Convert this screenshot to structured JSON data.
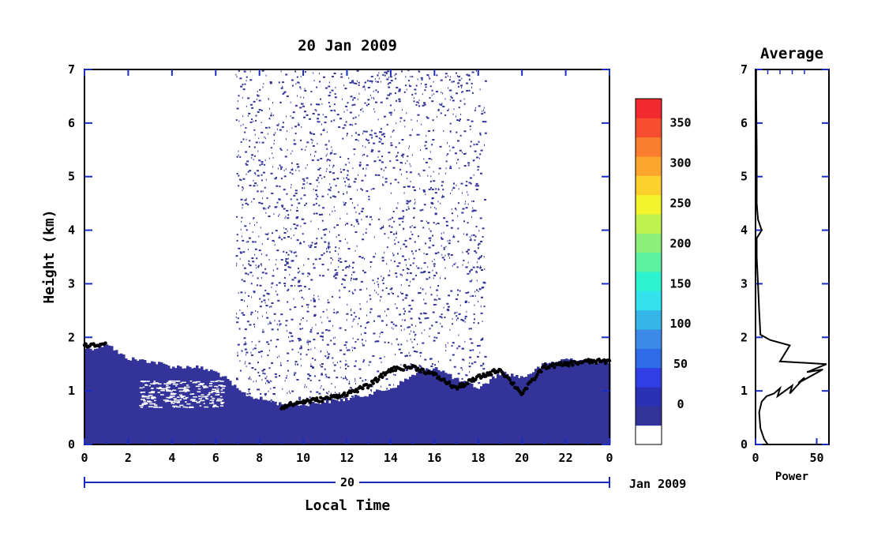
{
  "colors": {
    "background": "#ffffff",
    "frame": "#000000",
    "axis_blue": "#1a2bbf",
    "echo_navy": "#33339a",
    "black_points": "#000000"
  },
  "chart_data": [
    {
      "type": "heatmap",
      "title": "20 Jan 2009",
      "xlabel": "Local Time",
      "ylabel": "Height (km)",
      "xlim": [
        0,
        24
      ],
      "ylim": [
        0,
        7
      ],
      "x_tick_labels": [
        "0",
        "2",
        "4",
        "6",
        "8",
        "10",
        "12",
        "14",
        "16",
        "18",
        "20",
        "22",
        "0"
      ],
      "y_tick_labels": [
        "0",
        "1",
        "2",
        "3",
        "4",
        "5",
        "6",
        "7"
      ],
      "date_axis": {
        "day_label": "20",
        "month_label": "Jan 2009"
      },
      "colorbar": {
        "range": [
          -50,
          380
        ],
        "tick_labels": [
          "0",
          "50",
          "100",
          "150",
          "200",
          "250",
          "300",
          "350"
        ],
        "tick_values": [
          0,
          50,
          100,
          150,
          200,
          250,
          300,
          350
        ],
        "color_steps": [
          "#ffffff",
          "#33339a",
          "#2b31b4",
          "#2f3fe4",
          "#2e6be6",
          "#3b8ae8",
          "#35b6e8",
          "#33e2ec",
          "#2ef3d0",
          "#5bf3a0",
          "#8cf07b",
          "#bff24c",
          "#f3f42c",
          "#fcd12e",
          "#fca62e",
          "#fb7d2e",
          "#f74e30",
          "#f02a2e"
        ]
      },
      "series": [
        {
          "type": "boundary_layer_top",
          "x": [
            0,
            0.5,
            1,
            1.5,
            2,
            3,
            4,
            5,
            6,
            6.5,
            7,
            7.5,
            8,
            9,
            10,
            11,
            12,
            13,
            14,
            15,
            16,
            17,
            18,
            19,
            20,
            21,
            22,
            23,
            24
          ],
          "y": [
            1.8,
            1.8,
            1.9,
            1.7,
            1.6,
            1.55,
            1.45,
            1.45,
            1.35,
            1.2,
            1.0,
            0.9,
            0.85,
            0.75,
            0.75,
            0.8,
            0.85,
            0.95,
            1.05,
            1.3,
            1.45,
            1.2,
            1.05,
            1.35,
            1.25,
            1.5,
            1.6,
            1.55,
            1.55
          ]
        },
        {
          "type": "detected_layer_top",
          "x": [
            0,
            0.5,
            1,
            9,
            10,
            11,
            12,
            13,
            14,
            15,
            16,
            17,
            18,
            19,
            20,
            21,
            22,
            23,
            24
          ],
          "y": [
            1.85,
            1.85,
            1.9,
            0.7,
            0.8,
            0.85,
            0.95,
            1.1,
            1.4,
            1.45,
            1.3,
            1.05,
            1.25,
            1.4,
            0.95,
            1.45,
            1.5,
            1.55,
            1.55
          ]
        }
      ],
      "noise_region_x": [
        6.9,
        18.3
      ]
    },
    {
      "type": "line",
      "title": "Average",
      "xlabel": "Power",
      "xlim": [
        0,
        60
      ],
      "ylim": [
        0,
        7
      ],
      "x_tick_labels": [
        "0",
        "50"
      ],
      "y_tick_labels": [
        "0",
        "1",
        "2",
        "3",
        "4",
        "5",
        "6",
        "7"
      ],
      "x": [
        10,
        7,
        4,
        3,
        5,
        9,
        15,
        20,
        18,
        30,
        28,
        40,
        35,
        55,
        42,
        58,
        20,
        28,
        12,
        4,
        3,
        2,
        1,
        1,
        5,
        2,
        1,
        1,
        0.5,
        0.5
      ],
      "y": [
        0,
        0.1,
        0.3,
        0.6,
        0.8,
        0.9,
        0.95,
        1.05,
        0.9,
        1.1,
        0.95,
        1.25,
        1.15,
        1.4,
        1.35,
        1.5,
        1.55,
        1.85,
        1.95,
        2.05,
        2.5,
        3.0,
        3.5,
        3.85,
        4.0,
        4.2,
        4.5,
        5.5,
        6.5,
        7.0
      ]
    }
  ]
}
